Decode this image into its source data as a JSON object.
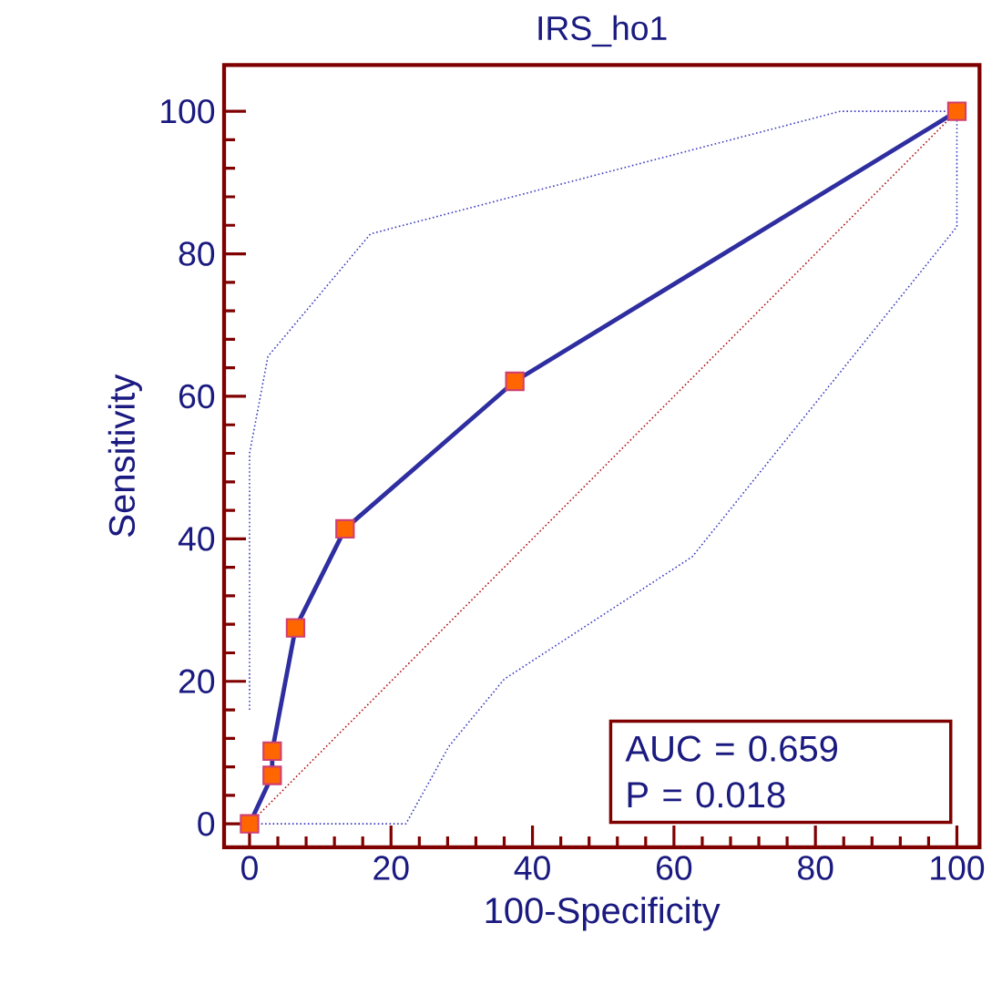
{
  "chart_data": {
    "type": "line",
    "title": "IRS_ho1",
    "xlabel": "100-Specificity",
    "ylabel": "Sensitivity",
    "xlim": [
      -3.6,
      103.2
    ],
    "ylim": [
      -3.3,
      106.5
    ],
    "xticks": [
      0,
      20,
      40,
      60,
      80,
      100
    ],
    "yticks": [
      0,
      20,
      40,
      60,
      80,
      100
    ],
    "annotations": [
      "AUC = 0.659",
      "P = 0.018"
    ],
    "series": [
      {
        "x": [
          0,
          22.1,
          28.2,
          36,
          62.6,
          100,
          100
        ],
        "values": [
          0,
          0,
          10.9,
          20.3,
          37.5,
          83.8,
          100
        ],
        "color": "#3b3bc0",
        "line_style": "dotted",
        "marker": "none"
      },
      {
        "x": [
          0,
          0,
          2.6,
          17.1,
          83.5,
          100
        ],
        "values": [
          16,
          52,
          65.6,
          82.8,
          100,
          100
        ],
        "color": "#3b3bc0",
        "line_style": "dotted",
        "marker": "none"
      },
      {
        "x": [
          0,
          100
        ],
        "values": [
          0,
          100
        ],
        "color": "#b01010",
        "line_style": "dotted",
        "marker": "none"
      },
      {
        "x": [
          0,
          3.2,
          3.2,
          6.5,
          13.5,
          37.5,
          100
        ],
        "values": [
          0,
          6.8,
          10.2,
          27.5,
          41.4,
          62.1,
          100
        ],
        "color": "#2e2ea0",
        "line_style": "solid",
        "marker": "square",
        "colors": [
          "#ff6600",
          "#ff6600",
          "#ff6600",
          "#ff6600",
          "#ff6600",
          "#ff6600",
          "#ff6600"
        ]
      }
    ]
  }
}
